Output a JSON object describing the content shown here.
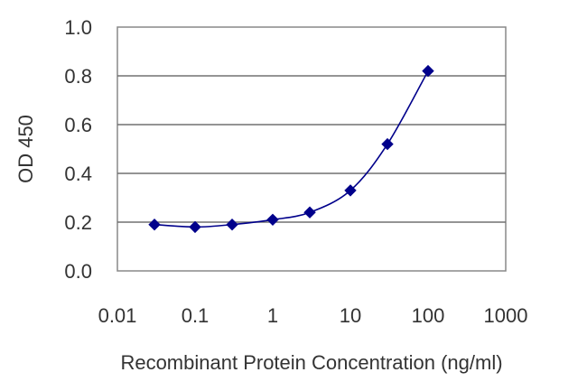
{
  "chart_data": {
    "type": "scatter",
    "title": "",
    "xlabel": "Recombinant Protein Concentration (ng/ml)",
    "ylabel": "OD 450",
    "x_scale": "log",
    "xlim": [
      0.01,
      1000
    ],
    "ylim": [
      0.0,
      1.0
    ],
    "x_ticks": [
      "0.01",
      "0.1",
      "1",
      "10",
      "100",
      "1000"
    ],
    "y_ticks": [
      "0.0",
      "0.2",
      "0.4",
      "0.6",
      "0.8",
      "1.0"
    ],
    "grid": "horizontal",
    "series": [
      {
        "x": [
          0.03,
          0.1,
          0.3,
          1,
          3,
          10,
          30,
          100
        ],
        "y": [
          0.19,
          0.18,
          0.19,
          0.21,
          0.24,
          0.33,
          0.52,
          0.82
        ],
        "color": "#00008B",
        "marker": "diamond",
        "fit_line": true
      }
    ],
    "colors": {
      "plot_background": "#ffffff",
      "frame": "#888888",
      "grid": "#707070"
    }
  }
}
